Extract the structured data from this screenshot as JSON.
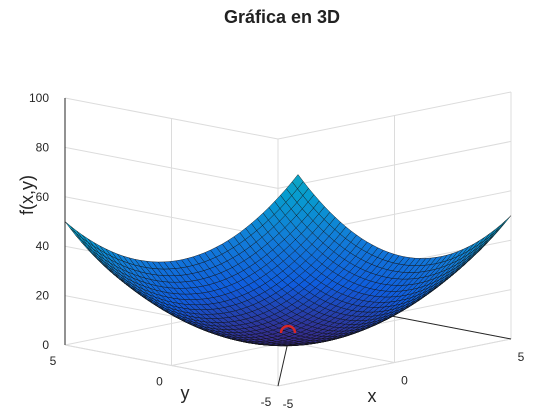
{
  "chart_data": {
    "type": "surface",
    "title": "Gráfica en 3D",
    "function": "x^2 + y^2",
    "xlabel": "x",
    "ylabel": "y",
    "zlabel": "f(x,y)",
    "xlim": [
      -5,
      5
    ],
    "ylim": [
      -5,
      5
    ],
    "zlim": [
      0,
      100
    ],
    "xticks": [
      "-5",
      "0",
      "5"
    ],
    "yticks": [
      "-5",
      "0",
      "5"
    ],
    "zticks": [
      "0",
      "20",
      "40",
      "60",
      "80",
      "100"
    ],
    "grid_resolution": 40,
    "grid": true,
    "colormap": "parula",
    "minimum_marker": {
      "x": 0,
      "y": 0,
      "z": 0,
      "color": "#d62728"
    }
  }
}
